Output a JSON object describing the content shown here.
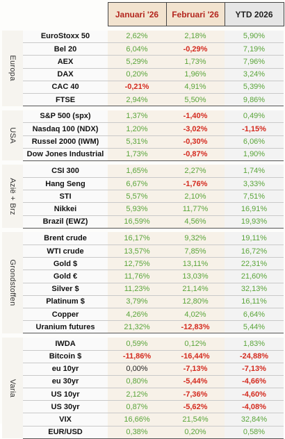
{
  "headers": {
    "jan": "Januari '26",
    "feb": "Februari '26",
    "ytd": "YTD 2026"
  },
  "groups": [
    {
      "label": "Europa",
      "rows": [
        {
          "name": "EuroStoxx 50",
          "jan": "2,62%",
          "feb": "2,18%",
          "ytd": "5,90%"
        },
        {
          "name": "Bel 20",
          "jan": "6,04%",
          "feb": "-0,29%",
          "ytd": "7,19%"
        },
        {
          "name": "AEX",
          "jan": "5,29%",
          "feb": "1,73%",
          "ytd": "7,96%"
        },
        {
          "name": "DAX",
          "jan": "0,20%",
          "feb": "1,96%",
          "ytd": "3,24%"
        },
        {
          "name": "CAC 40",
          "jan": "-0,21%",
          "feb": "4,91%",
          "ytd": "5,39%"
        },
        {
          "name": "FTSE",
          "jan": "2,94%",
          "feb": "5,50%",
          "ytd": "9,86%"
        }
      ]
    },
    {
      "label": "USA",
      "rows": [
        {
          "name": "S&P 500 (spx)",
          "jan": "1,37%",
          "feb": "-1,40%",
          "ytd": "0,49%"
        },
        {
          "name": "Nasdaq 100 (NDX)",
          "jan": "1,20%",
          "feb": "-3,02%",
          "ytd": "-1,15%"
        },
        {
          "name": "Russel 2000 (IWM)",
          "jan": "5,31%",
          "feb": "-0,30%",
          "ytd": "6,06%"
        },
        {
          "name": "Dow Jones Industrial",
          "jan": "1,73%",
          "feb": "-0,87%",
          "ytd": "1,90%"
        }
      ]
    },
    {
      "label": "Azië + Brz",
      "rows": [
        {
          "name": "CSI 300",
          "jan": "1,65%",
          "feb": "2,27%",
          "ytd": "1,74%"
        },
        {
          "name": "Hang Seng",
          "jan": "6,67%",
          "feb": "-1,76%",
          "ytd": "3,33%"
        },
        {
          "name": "STI",
          "jan": "5,57%",
          "feb": "2,10%",
          "ytd": "7,51%"
        },
        {
          "name": "Nikkei",
          "jan": "5,93%",
          "feb": "11,77%",
          "ytd": "16,91%"
        },
        {
          "name": "Brazil (EWZ)",
          "jan": "16,59%",
          "feb": "4,56%",
          "ytd": "19,93%"
        }
      ]
    },
    {
      "label": "Grondstoffen",
      "rows": [
        {
          "name": "Brent crude",
          "jan": "16,17%",
          "feb": "9,32%",
          "ytd": "19,11%"
        },
        {
          "name": "WTI crude",
          "jan": "13,57%",
          "feb": "7,85%",
          "ytd": "16,72%"
        },
        {
          "name": "Gold $",
          "jan": "12,75%",
          "feb": "13,11%",
          "ytd": "22,31%"
        },
        {
          "name": "Gold €",
          "jan": "11,76%",
          "feb": "13,03%",
          "ytd": "21,60%"
        },
        {
          "name": "Silver $",
          "jan": "11,23%",
          "feb": "21,14%",
          "ytd": "32,13%"
        },
        {
          "name": "Platinum $",
          "jan": "3,79%",
          "feb": "12,80%",
          "ytd": "16,11%"
        },
        {
          "name": "Copper",
          "jan": "4,26%",
          "feb": "4,02%",
          "ytd": "6,64%"
        },
        {
          "name": "Uranium futures",
          "jan": "21,32%",
          "feb": "-12,83%",
          "ytd": "5,44%"
        }
      ]
    },
    {
      "label": "Varia",
      "rows": [
        {
          "name": "IWDA",
          "jan": "0,59%",
          "feb": "0,12%",
          "ytd": "1,83%"
        },
        {
          "name": "Bitcoin $",
          "jan": "-11,86%",
          "feb": "-16,44%",
          "ytd": "-24,88%"
        },
        {
          "name": "eu 10yr",
          "jan": "0,00%",
          "feb": "-7,13%",
          "ytd": "-7,13%"
        },
        {
          "name": "eu 30yr",
          "jan": "0,80%",
          "feb": "-5,44%",
          "ytd": "-4,66%"
        },
        {
          "name": "US 10yr",
          "jan": "2,12%",
          "feb": "-7,36%",
          "ytd": "-4,60%"
        },
        {
          "name": "US 30yr",
          "jan": "0,87%",
          "feb": "-5,62%",
          "ytd": "-4,08%"
        },
        {
          "name": "VIX",
          "jan": "16,66%",
          "feb": "21,54%",
          "ytd": "32,84%"
        },
        {
          "name": "EUR/USD",
          "jan": "0,38%",
          "feb": "0,20%",
          "ytd": "0,58%"
        }
      ]
    }
  ]
}
